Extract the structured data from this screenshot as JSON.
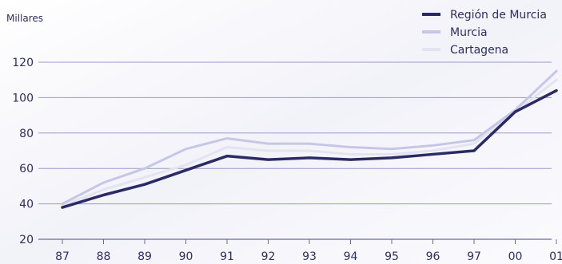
{
  "chart_data": {
    "type": "line",
    "title": "",
    "ylabel": "Millares",
    "xlabel": "",
    "categories": [
      "87",
      "88",
      "89",
      "90",
      "91",
      "92",
      "93",
      "94",
      "95",
      "96",
      "97",
      "00",
      "01"
    ],
    "ylim": [
      20,
      120
    ],
    "yticks": [
      "20",
      "40",
      "60",
      "80",
      "100",
      "120"
    ],
    "grid": true,
    "legend_position": "top-right",
    "series": [
      {
        "name": "Región de Murcia",
        "color": "#2a2a66",
        "values": [
          38,
          45,
          51,
          59,
          67,
          65,
          66,
          65,
          66,
          68,
          70,
          92,
          104
        ]
      },
      {
        "name": "Murcia",
        "color": "#c6c6e6",
        "values": [
          40,
          52,
          60,
          71,
          77,
          74,
          74,
          72,
          71,
          73,
          76,
          93,
          115
        ]
      },
      {
        "name": "Cartagena",
        "color": "#e3e3f2",
        "values": [
          39,
          48,
          55,
          62,
          72,
          70,
          70,
          68,
          68,
          70,
          74,
          92,
          110
        ]
      }
    ]
  }
}
